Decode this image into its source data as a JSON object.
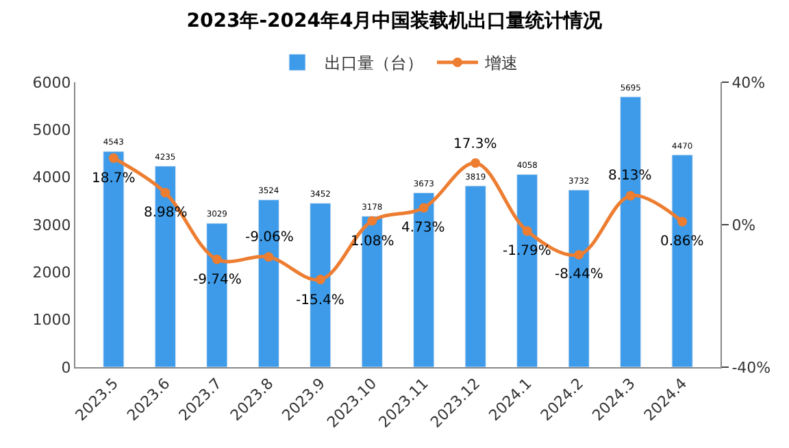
{
  "chart_data": {
    "type": "bar",
    "title": "2023年-2024年4月中国装载机出口量统计情况",
    "categories": [
      "2023.5",
      "2023.6",
      "2023.7",
      "2023.8",
      "2023.9",
      "2023.10",
      "2023.11",
      "2023.12",
      "2024.1",
      "2024.2",
      "2024.3",
      "2024.4"
    ],
    "series": [
      {
        "name": "出口量（台）",
        "color": "#3d9be9",
        "values": [
          4543,
          4235,
          3029,
          3524,
          3452,
          3178,
          3673,
          3819,
          4058,
          3732,
          5695,
          4470
        ],
        "value_labels": [
          "4543",
          "4235",
          "3029",
          "3524",
          "3452",
          "3178",
          "3673",
          "3819",
          "4058",
          "3732",
          "5695",
          "4470"
        ]
      },
      {
        "name": "增速",
        "type": "line",
        "axis": "y2",
        "color": "#ed7d31",
        "marker": "circle",
        "values": [
          18.7,
          8.98,
          -9.74,
          -9.06,
          -15.4,
          1.08,
          4.73,
          17.3,
          -1.79,
          -8.44,
          8.13,
          0.86
        ],
        "value_labels": [
          "18.7%",
          "8.98%",
          "-9.74%",
          "-9.06%",
          "-15.4%",
          "1.08%",
          "4.73%",
          "17.3%",
          "-1.79%",
          "-8.44%",
          "8.13%",
          "0.86%"
        ]
      }
    ],
    "ylim": [
      0,
      6000
    ],
    "yticks": [
      0,
      1000,
      2000,
      3000,
      4000,
      5000,
      6000
    ],
    "y2lim": [
      -40,
      40
    ],
    "y2ticks": [
      {
        "value": -40,
        "label": "-40%"
      },
      {
        "value": 0,
        "label": "0%"
      },
      {
        "value": 40,
        "label": "40%"
      }
    ],
    "legend": "top"
  }
}
